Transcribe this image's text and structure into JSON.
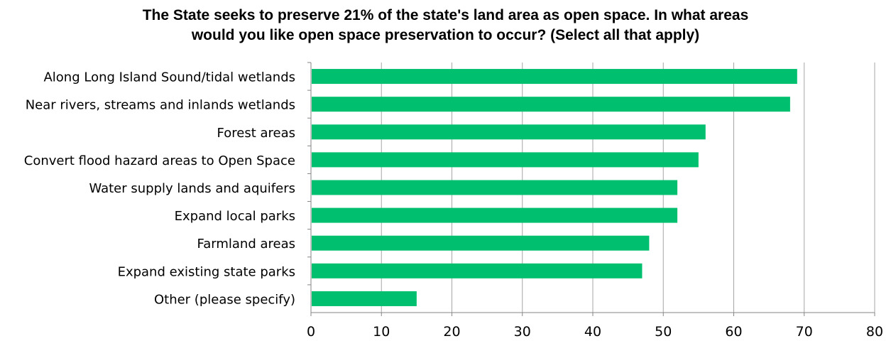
{
  "chart_data": {
    "type": "bar",
    "orientation": "horizontal",
    "title_lines": [
      "The State seeks to preserve 21%  of the state's land area as open space.  In what areas",
      "would you like open space preservation to occur? (Select all that apply)"
    ],
    "categories": [
      "Along Long Island Sound/tidal wetlands",
      "Near rivers, streams and inlands wetlands",
      "Forest areas",
      "Convert flood hazard areas to Open Space",
      "Water supply lands and aquifers",
      "Expand local parks",
      "Farmland areas",
      "Expand existing state parks",
      "Other (please specify)"
    ],
    "values": [
      69,
      68,
      56,
      55,
      52,
      52,
      48,
      47,
      15
    ],
    "xlim": [
      0,
      80
    ],
    "xticks": [
      "0",
      "10",
      "20",
      "30",
      "40",
      "50",
      "60",
      "70",
      "80"
    ],
    "grid": true,
    "legend": "none",
    "bar_color": "#00c06f",
    "grid_color": "#a6a6a6"
  }
}
